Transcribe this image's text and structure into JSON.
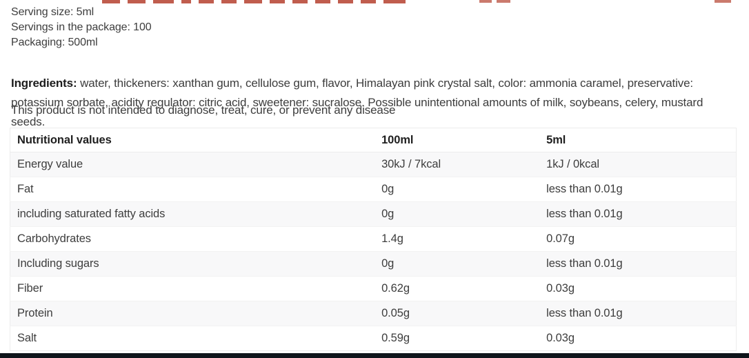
{
  "page": {
    "clipped_heading_color": "#b5412f",
    "bottom_bar_color": "#0e141a",
    "background_color": "#ffffff",
    "stripe_color": "#f8f8f9"
  },
  "product_info": {
    "serving_size": "Serving size: 5ml",
    "servings_in_package": "Servings in the package: 100",
    "packaging": "Packaging: 500ml"
  },
  "ingredients": {
    "label": "Ingredients:",
    "text": " water, thickeners: xanthan gum, cellulose gum, flavor, Himalayan pink crystal salt, color: ammonia caramel, preservative: potassium sorbate, acidity regulator: citric acid, sweetener: sucralose. Possible unintentional amounts of milk, soybeans, celery, mustard seeds."
  },
  "disclaimer": "This product is not intended to diagnose, treat, cure, or prevent any disease",
  "nutrition_table": {
    "headers": [
      "Nutritional values",
      "100ml",
      "5ml"
    ],
    "rows": [
      [
        "Energy value",
        "30kJ / 7kcal",
        "1kJ / 0kcal"
      ],
      [
        "Fat",
        "0g",
        "less than 0.01g"
      ],
      [
        "including saturated fatty acids",
        "0g",
        "less than 0.01g"
      ],
      [
        "Carbohydrates",
        "1.4g",
        "0.07g"
      ],
      [
        "Including sugars",
        "0g",
        "less than 0.01g"
      ],
      [
        "Fiber",
        "0.62g",
        "0.03g"
      ],
      [
        "Protein",
        "0.05g",
        "less than 0.01g"
      ],
      [
        "Salt",
        "0.59g",
        "0.03g"
      ]
    ]
  }
}
